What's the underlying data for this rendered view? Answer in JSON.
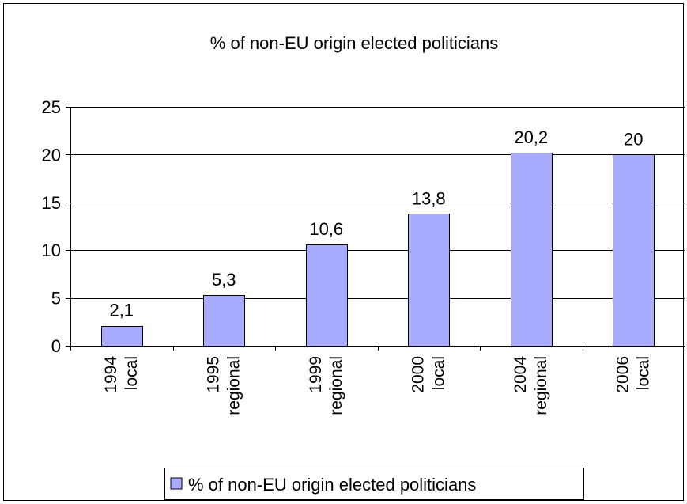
{
  "chart_data": {
    "type": "bar",
    "title": "% of non-EU origin elected politicians",
    "categories": [
      [
        "1994",
        "local"
      ],
      [
        "1995",
        "regional"
      ],
      [
        "1999",
        "regional"
      ],
      [
        "2000",
        "local"
      ],
      [
        "2004",
        "regional"
      ],
      [
        "2006",
        "local"
      ]
    ],
    "series": [
      {
        "name": "% of non-EU origin elected politicians",
        "values": [
          2.1,
          5.3,
          10.6,
          13.8,
          20.2,
          20
        ],
        "labels": [
          "2,1",
          "5,3",
          "10,6",
          "13,8",
          "20,2",
          "20"
        ],
        "color": "#a9abff"
      }
    ],
    "ylim": [
      0,
      25
    ],
    "yticks": [
      0,
      5,
      10,
      15,
      20,
      25
    ],
    "grid": true,
    "legend": "bottom",
    "xlabel": "",
    "ylabel": ""
  }
}
